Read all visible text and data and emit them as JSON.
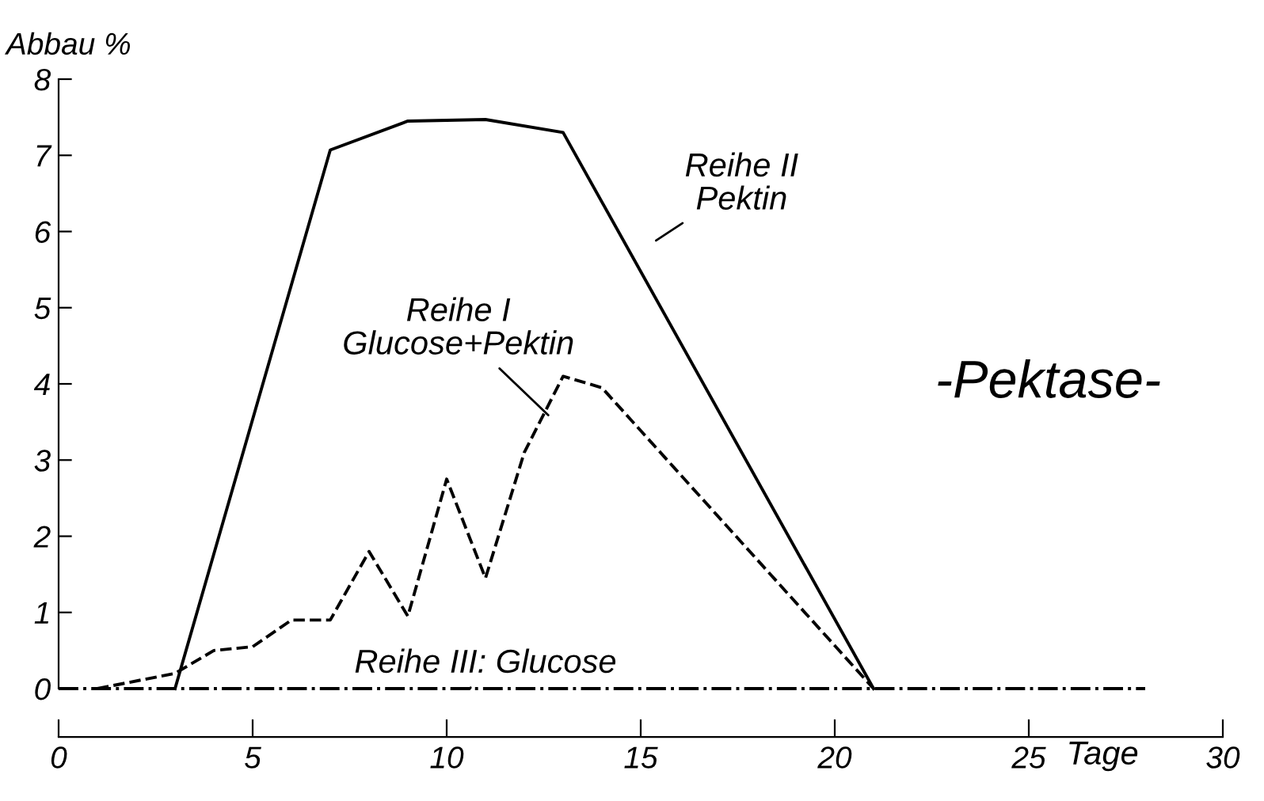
{
  "chart_data": {
    "type": "line",
    "xlabel": "Tage",
    "ylabel": "Abbau %",
    "xlim": [
      0,
      30
    ],
    "ylim": [
      0,
      8
    ],
    "xticks": [
      0,
      5,
      10,
      15,
      20,
      25,
      30
    ],
    "yticks": [
      0,
      1,
      2,
      3,
      4,
      5,
      6,
      7,
      8
    ],
    "grid": false,
    "legend": false,
    "marker": "none",
    "series": [
      {
        "name": "Reihe I\nGlucose+Pektin",
        "color": "#000000",
        "line_style": "dashed",
        "x": [
          1,
          3,
          4,
          5,
          6,
          7,
          8,
          9,
          10,
          11,
          12,
          13,
          14,
          21
        ],
        "values": [
          0,
          0.2,
          0.5,
          0.55,
          0.9,
          0.9,
          1.8,
          0.95,
          2.75,
          1.45,
          3.1,
          4.1,
          3.95,
          0
        ]
      },
      {
        "name": "Reihe II\nPektin",
        "color": "#000000",
        "line_style": "solid",
        "x": [
          3,
          7,
          9,
          11,
          13,
          21
        ],
        "values": [
          0,
          7.07,
          7.45,
          7.47,
          7.3,
          0
        ]
      },
      {
        "name": "Reihe III: Glucose",
        "color": "#000000",
        "line_style": "dashdot",
        "x": [
          0,
          28
        ],
        "values": [
          0,
          0
        ]
      }
    ],
    "annotations": [
      "-Pektase-"
    ]
  }
}
